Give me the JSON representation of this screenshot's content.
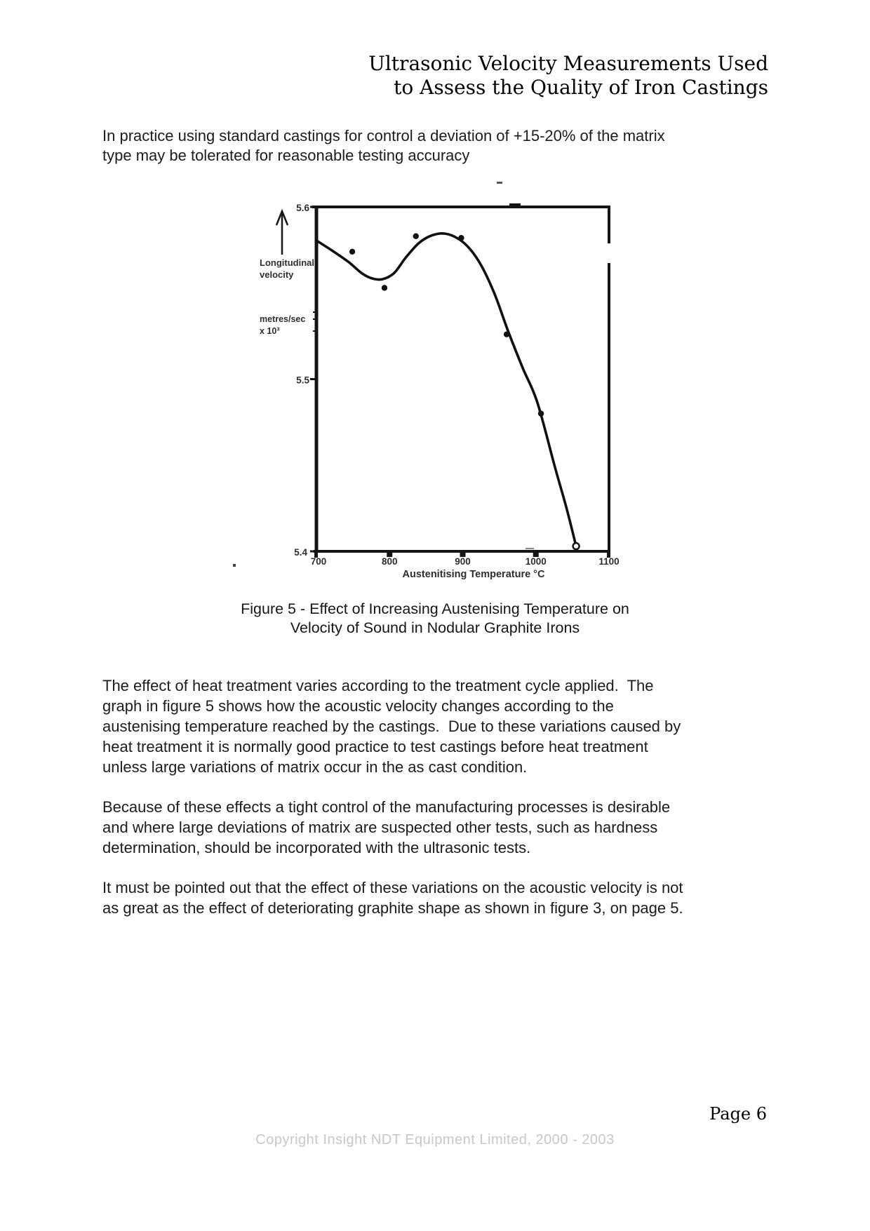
{
  "header": {
    "lines": [
      "Ultrasonic Velocity Measurements Used",
      "to Assess the Quality of Iron Castings"
    ]
  },
  "intro_paragraph": {
    "lines": [
      "In practice using standard castings for control a deviation of +15-20% of the matrix",
      "type may be tolerated for reasonable testing accuracy"
    ]
  },
  "figure": {
    "caption_lines": [
      "Figure 5 - Effect of Increasing Austenising Temperature on",
      "Velocity of Sound in Nodular Graphite Irons"
    ]
  },
  "chart_data": {
    "type": "scatter",
    "title": "",
    "xlabel": "Austenitising Temperature °C",
    "ylabel_lines": [
      "Longitudinal",
      "velocity"
    ],
    "yunit_lines": [
      "metres/sec",
      "x 10³"
    ],
    "xlim": [
      700,
      1100
    ],
    "ylim": [
      5.4,
      5.6
    ],
    "x_ticks": [
      700,
      800,
      900,
      1000,
      1100
    ],
    "y_ticks": [
      5.6,
      5.5,
      5.4
    ],
    "grid": false,
    "legend": "none",
    "points": [
      {
        "x": 749,
        "y": 5.574
      },
      {
        "x": 793,
        "y": 5.553
      },
      {
        "x": 836,
        "y": 5.583
      },
      {
        "x": 898,
        "y": 5.582
      },
      {
        "x": 960,
        "y": 5.526
      },
      {
        "x": 1007,
        "y": 5.48
      },
      {
        "x": 1055,
        "y": 5.403,
        "marker": "open"
      }
    ],
    "curve": [
      [
        700,
        5.5805
      ],
      [
        722,
        5.5745
      ],
      [
        744,
        5.568
      ],
      [
        762,
        5.5615
      ],
      [
        776,
        5.5585
      ],
      [
        790,
        5.558
      ],
      [
        806,
        5.5615
      ],
      [
        822,
        5.5705
      ],
      [
        840,
        5.579
      ],
      [
        858,
        5.5835
      ],
      [
        876,
        5.5845
      ],
      [
        894,
        5.5815
      ],
      [
        910,
        5.5755
      ],
      [
        926,
        5.5655
      ],
      [
        944,
        5.549
      ],
      [
        962,
        5.528
      ],
      [
        982,
        5.5065
      ],
      [
        1002,
        5.4865
      ],
      [
        1026,
        5.449
      ],
      [
        1042,
        5.425
      ],
      [
        1055,
        5.403
      ]
    ]
  },
  "body_paragraphs": {
    "p1": {
      "lines": [
        "The effect of heat treatment varies according to the treatment cycle applied.  The",
        "graph in figure 5 shows how the acoustic velocity changes according to the",
        "austenising temperature reached by the castings.  Due to these variations caused by",
        "heat treatment it is normally good practice to test castings before heat treatment",
        "unless large variations of matrix occur in the as cast condition."
      ]
    },
    "p2": {
      "lines": [
        "Because of these effects a tight control of the manufacturing processes is desirable",
        "and where large deviations of matrix are suspected other tests, such as hardness",
        "determination, should be incorporated with the ultrasonic tests."
      ]
    },
    "p3": {
      "lines": [
        "It must be pointed out that the effect of these variations on the acoustic velocity is not",
        "as great as the effect of deteriorating graphite shape as shown in figure 3, on page 5."
      ]
    }
  },
  "footer": {
    "page_label": "Page 6",
    "copyright": "Copyright Insight NDT Equipment Limited, 2000 - 2003"
  },
  "colors": {
    "ink": "#151515",
    "chart_text": "#2e2e2e",
    "copyright_gray": "#c7c7c7"
  }
}
